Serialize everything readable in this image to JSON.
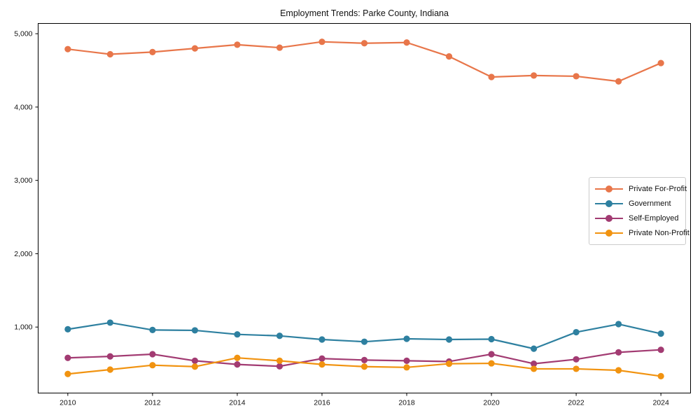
{
  "title": "Employment Trends: Parke County, Indiana",
  "axes": {
    "spine_color": "#000000",
    "tick_color": "#000000",
    "tick_label_color": "#111111"
  },
  "chart_data": {
    "type": "line",
    "title": "Employment Trends: Parke County, Indiana",
    "xlabel": "",
    "ylabel": "",
    "grid": false,
    "legend_position": "center-right inside axes",
    "x": [
      2010,
      2011,
      2012,
      2013,
      2014,
      2015,
      2016,
      2017,
      2018,
      2019,
      2020,
      2021,
      2022,
      2023,
      2024
    ],
    "xticks": [
      2010,
      2012,
      2014,
      2016,
      2018,
      2020,
      2022,
      2024
    ],
    "xtick_labels": [
      "2010",
      "2012",
      "2014",
      "2016",
      "2018",
      "2020",
      "2022",
      "2024"
    ],
    "yticks": [
      1000,
      2000,
      3000,
      4000,
      5000
    ],
    "ytick_labels": [
      "1,000",
      "2,000",
      "3,000",
      "4,000",
      "5,000"
    ],
    "xlim": [
      2009.3,
      2024.7
    ],
    "ylim": [
      100,
      5140
    ],
    "series": [
      {
        "name": "Private For-Profit",
        "color": "#e8764a",
        "values": [
          4790,
          4720,
          4750,
          4800,
          4850,
          4810,
          4890,
          4870,
          4880,
          4690,
          4410,
          4430,
          4420,
          4350,
          4600
        ]
      },
      {
        "name": "Government",
        "color": "#2e80a0",
        "values": [
          970,
          1060,
          960,
          955,
          900,
          880,
          830,
          800,
          840,
          830,
          835,
          705,
          930,
          1040,
          910
        ]
      },
      {
        "name": "Self-Employed",
        "color": "#a23b72",
        "values": [
          580,
          600,
          630,
          540,
          490,
          465,
          570,
          550,
          540,
          530,
          630,
          500,
          560,
          655,
          690
        ]
      },
      {
        "name": "Private Non-Profit",
        "color": "#f19310",
        "values": [
          360,
          420,
          480,
          460,
          580,
          540,
          490,
          460,
          450,
          500,
          505,
          430,
          430,
          410,
          330
        ]
      }
    ]
  }
}
